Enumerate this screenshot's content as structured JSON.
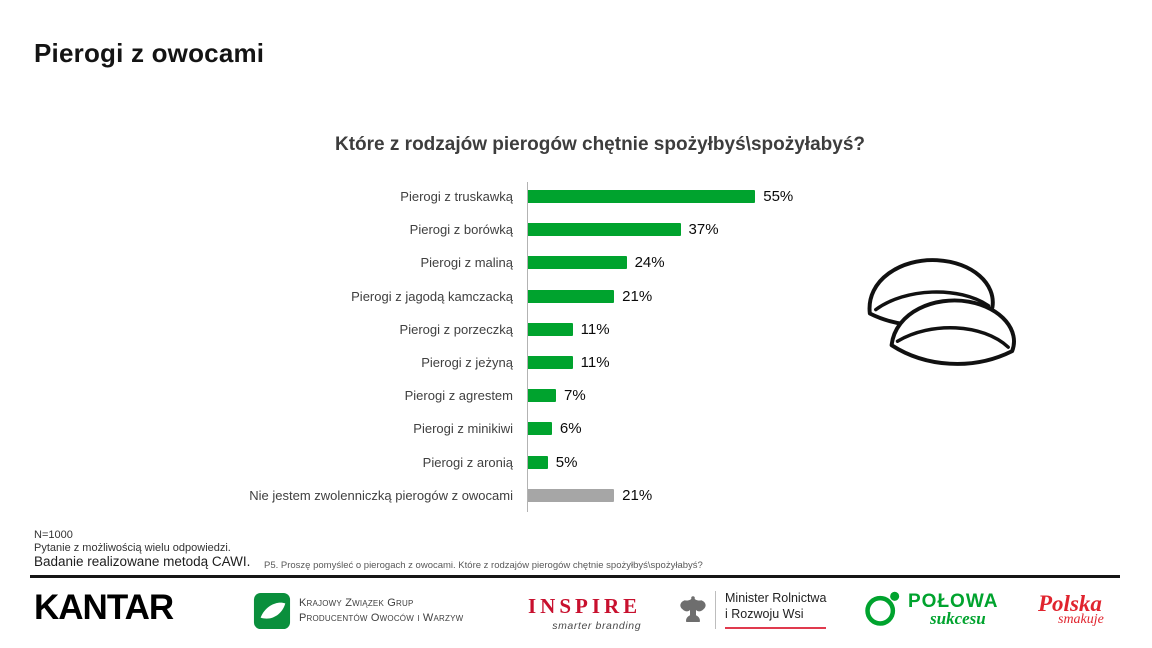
{
  "page": {
    "title": "Pierogi z owocami"
  },
  "chart_data": {
    "type": "bar",
    "orientation": "horizontal",
    "title": "Które z rodzajów pierogów chętnie spożyłbyś\\spożyłabyś?",
    "categories": [
      "Pierogi z truskawką",
      "Pierogi z borówką",
      "Pierogi z maliną",
      "Pierogi z jagodą kamczacką",
      "Pierogi z porzeczką",
      "Pierogi z jeżyną",
      "Pierogi z agrestem",
      "Pierogi z minikiwi",
      "Pierogi z aronią",
      "Nie jestem zwolenniczką pierogów z owocami"
    ],
    "values": [
      55,
      37,
      24,
      21,
      11,
      11,
      7,
      6,
      5,
      21
    ],
    "value_labels": [
      "55%",
      "37%",
      "24%",
      "21%",
      "11%",
      "11%",
      "7%",
      "6%",
      "5%",
      "21%"
    ],
    "gray_indices": [
      9
    ],
    "colors": {
      "bar_green": "#00a32e",
      "bar_gray": "#a6a6a6"
    },
    "xlim": [
      0,
      60
    ],
    "grid": false,
    "legend": "none",
    "xlabel": "",
    "ylabel": ""
  },
  "footnotes": {
    "n": "N=1000",
    "multi": "Pytanie z możliwością wielu odpowiedzi.",
    "method": "Badanie realizowane metodą CAWI.",
    "question": "P5. Proszę pomyśleć o pierogach z owocami. Które z rodzajów pierogów chętnie spożyłbyś\\spożyłabyś?"
  },
  "logos": {
    "kantar": "KANTAR",
    "kzgp_line1": "Krajowy Związek Grup",
    "kzgp_line2": "Producentów Owoców i Warzyw",
    "inspire": "INSPIRE",
    "inspire_sub": "smarter branding",
    "ministry_line1": "Minister Rolnictwa",
    "ministry_line2": "i Rozwoju Wsi",
    "polowa_line1": "POŁOWA",
    "polowa_line2": "sukcesu",
    "polska_line1": "Polska",
    "polska_line2": "smakuje"
  }
}
